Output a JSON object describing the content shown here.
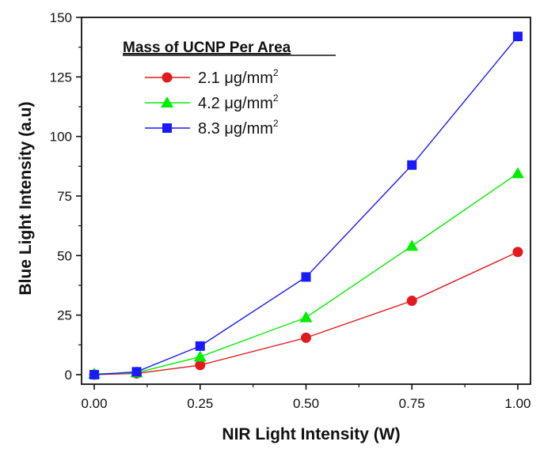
{
  "chart_data": {
    "type": "line",
    "title": "",
    "xlabel": "NIR Light Intensity (W)",
    "ylabel": "Blue Light Intensity (a.u)",
    "xlim": [
      -0.03,
      1.03
    ],
    "ylim": [
      -4,
      150
    ],
    "xticks": [
      0.0,
      0.25,
      0.5,
      0.75,
      1.0
    ],
    "xtick_labels": [
      "0.00",
      "0.25",
      "0.50",
      "0.75",
      "1.00"
    ],
    "yticks": [
      0,
      25,
      50,
      75,
      100,
      125,
      150
    ],
    "ytick_labels": [
      "0",
      "25",
      "50",
      "75",
      "100",
      "125",
      "150"
    ],
    "grid": false,
    "legend": {
      "title": "Mass of UCNP Per Area",
      "placement": "top-left"
    },
    "x": [
      0.0,
      0.1,
      0.25,
      0.5,
      0.75,
      1.0
    ],
    "series": [
      {
        "name": "2.1 μg/mm²",
        "name_main": "2.1 μg/mm",
        "name_sup": "2",
        "color": "#e31a1c",
        "marker": "circle",
        "values": [
          0,
          0.5,
          4,
          15.5,
          31,
          51.5
        ]
      },
      {
        "name": "4.2 μg/mm²",
        "name_main": "4.2 μg/mm",
        "name_sup": "2",
        "color": "#00ee00",
        "marker": "triangle",
        "values": [
          0.3,
          0.8,
          7.5,
          24,
          54,
          84.5
        ]
      },
      {
        "name": "8.3 μg/mm²",
        "name_main": "8.3 μg/mm",
        "name_sup": "2",
        "color": "#1a1aff",
        "marker": "square",
        "values": [
          0,
          1.2,
          12,
          41,
          88,
          142
        ]
      }
    ]
  }
}
